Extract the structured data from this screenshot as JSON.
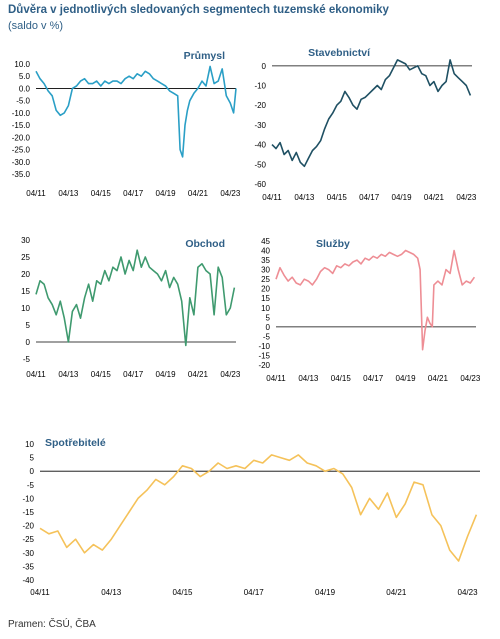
{
  "header": {
    "title": "Důvěra v jednotlivých sledovaných segmentech tuzemské ekonomiky",
    "subtitle": "(saldo v %)"
  },
  "footer": {
    "source": "Pramen: ČSÚ, ČBA"
  },
  "colors": {
    "prumysl": "#2a9fc6",
    "stavebnictvi": "#1f5063",
    "obchod": "#3f9a6f",
    "sluzby": "#ee8e95",
    "spotrebitele": "#f5c25a",
    "axis": "#000000",
    "title_text": "#2f5f86"
  },
  "chart_data": [
    {
      "id": "prumysl",
      "type": "line",
      "title": "Průmysl",
      "xlabel": "",
      "ylabel": "",
      "x_tick_labels": [
        "04/11",
        "04/13",
        "04/15",
        "04/17",
        "04/19",
        "04/21",
        "04/23"
      ],
      "x_tick_positions": [
        2011.25,
        2013.25,
        2015.25,
        2017.25,
        2019.25,
        2021.25,
        2023.25
      ],
      "xlim": [
        2011.25,
        2023.6
      ],
      "ylim": [
        -35,
        10
      ],
      "y_ticks": [
        10,
        5,
        0,
        -5,
        -10,
        -15,
        -20,
        -25,
        -30,
        -35
      ],
      "y_tick_labels": [
        "10.0",
        "5.0",
        "0.0",
        "-5.0",
        "-10.0",
        "-15.0",
        "-20.0",
        "-25.0",
        "-30.0",
        "-35.0"
      ],
      "zero_line": true,
      "grid": false,
      "series": [
        {
          "x": [
            2011.25,
            2011.5,
            2011.75,
            2012.0,
            2012.25,
            2012.5,
            2012.75,
            2013.0,
            2013.25,
            2013.5,
            2013.75,
            2014.0,
            2014.25,
            2014.5,
            2014.75,
            2015.0,
            2015.25,
            2015.5,
            2015.75,
            2016.0,
            2016.25,
            2016.5,
            2016.75,
            2017.0,
            2017.25,
            2017.5,
            2017.75,
            2018.0,
            2018.25,
            2018.5,
            2018.75,
            2019.0,
            2019.25,
            2019.5,
            2019.75,
            2020.0,
            2020.15,
            2020.3,
            2020.45,
            2020.6,
            2020.75,
            2021.0,
            2021.25,
            2021.5,
            2021.75,
            2022.0,
            2022.25,
            2022.5,
            2022.75,
            2023.0,
            2023.25,
            2023.45,
            2023.6
          ],
          "values": [
            7,
            4,
            2,
            -1,
            -3,
            -9,
            -11,
            -10,
            -7,
            0,
            1,
            3,
            4,
            2,
            2,
            3,
            1,
            3,
            2,
            3,
            3,
            2,
            4,
            5,
            4,
            6,
            5,
            7,
            6,
            4,
            3,
            2,
            1,
            -1,
            -2,
            -3,
            -25,
            -28,
            -15,
            -9,
            -5,
            -2,
            0,
            3,
            1,
            9,
            2,
            3,
            8,
            -3,
            -6,
            -10,
            0
          ]
        }
      ]
    },
    {
      "id": "stavebnictvi",
      "type": "line",
      "title": "Stavebnictví",
      "xlabel": "",
      "ylabel": "",
      "x_tick_labels": [
        "04/11",
        "04/13",
        "04/15",
        "04/17",
        "04/19",
        "04/21",
        "04/23"
      ],
      "x_tick_positions": [
        2011.25,
        2013.25,
        2015.25,
        2017.25,
        2019.25,
        2021.25,
        2023.25
      ],
      "xlim": [
        2011.25,
        2023.6
      ],
      "ylim": [
        -60,
        5
      ],
      "y_ticks": [
        0,
        -10,
        -20,
        -30,
        -40,
        -50,
        -60
      ],
      "y_tick_labels": [
        "0",
        "-10",
        "-20",
        "-30",
        "-40",
        "-50",
        "-60"
      ],
      "zero_line": true,
      "grid": false,
      "series": [
        {
          "x": [
            2011.25,
            2011.5,
            2011.75,
            2012.0,
            2012.25,
            2012.5,
            2012.75,
            2013.0,
            2013.25,
            2013.5,
            2013.75,
            2014.0,
            2014.25,
            2014.5,
            2014.75,
            2015.0,
            2015.25,
            2015.5,
            2015.75,
            2016.0,
            2016.25,
            2016.5,
            2016.75,
            2017.0,
            2017.25,
            2017.5,
            2017.75,
            2018.0,
            2018.25,
            2018.5,
            2018.75,
            2019.0,
            2019.25,
            2019.5,
            2019.75,
            2020.0,
            2020.25,
            2020.5,
            2020.75,
            2021.0,
            2021.25,
            2021.5,
            2021.75,
            2022.0,
            2022.25,
            2022.5,
            2022.75,
            2023.0,
            2023.25,
            2023.5
          ],
          "values": [
            -40,
            -42,
            -39,
            -45,
            -43,
            -48,
            -44,
            -49,
            -51,
            -47,
            -43,
            -41,
            -38,
            -32,
            -27,
            -24,
            -20,
            -18,
            -13,
            -16,
            -20,
            -22,
            -17,
            -16,
            -14,
            -12,
            -10,
            -12,
            -7,
            -5,
            -1,
            3,
            2,
            1,
            -2,
            -1,
            0,
            -4,
            -5,
            -10,
            -8,
            -13,
            -10,
            -8,
            3,
            -4,
            -6,
            -8,
            -10,
            -15
          ]
        }
      ]
    },
    {
      "id": "obchod",
      "type": "line",
      "title": "Obchod",
      "xlabel": "",
      "ylabel": "",
      "x_tick_labels": [
        "04/11",
        "04/13",
        "04/15",
        "04/17",
        "04/19",
        "04/21",
        "04/23"
      ],
      "x_tick_positions": [
        2011.25,
        2013.25,
        2015.25,
        2017.25,
        2019.25,
        2021.25,
        2023.25
      ],
      "xlim": [
        2011.25,
        2023.6
      ],
      "ylim": [
        -5,
        30
      ],
      "y_ticks": [
        30,
        25,
        20,
        15,
        10,
        5,
        0,
        -5
      ],
      "y_tick_labels": [
        "30",
        "25",
        "20",
        "15",
        "10",
        "5",
        "0",
        "-5"
      ],
      "zero_line": true,
      "grid": false,
      "series": [
        {
          "x": [
            2011.25,
            2011.5,
            2011.75,
            2012.0,
            2012.25,
            2012.5,
            2012.75,
            2013.0,
            2013.25,
            2013.5,
            2013.75,
            2014.0,
            2014.25,
            2014.5,
            2014.75,
            2015.0,
            2015.25,
            2015.5,
            2015.75,
            2016.0,
            2016.25,
            2016.5,
            2016.75,
            2017.0,
            2017.25,
            2017.5,
            2017.75,
            2018.0,
            2018.25,
            2018.5,
            2018.75,
            2019.0,
            2019.25,
            2019.5,
            2019.75,
            2020.0,
            2020.25,
            2020.5,
            2020.75,
            2021.0,
            2021.25,
            2021.5,
            2021.75,
            2022.0,
            2022.25,
            2022.5,
            2022.75,
            2023.0,
            2023.25,
            2023.5
          ],
          "values": [
            14,
            18,
            17,
            13,
            11,
            8,
            12,
            7,
            0,
            9,
            11,
            7,
            13,
            17,
            12,
            18,
            17,
            21,
            18,
            22,
            21,
            25,
            20,
            24,
            21,
            27,
            22,
            25,
            22,
            21,
            20,
            18,
            21,
            16,
            19,
            17,
            12,
            -1,
            13,
            8,
            22,
            23,
            21,
            20,
            8,
            22,
            19,
            8,
            10,
            16
          ]
        }
      ]
    },
    {
      "id": "sluzby",
      "type": "line",
      "title": "Služby",
      "xlabel": "",
      "ylabel": "",
      "x_tick_labels": [
        "04/11",
        "04/13",
        "04/15",
        "04/17",
        "04/19",
        "04/21",
        "04/23"
      ],
      "x_tick_positions": [
        2011.25,
        2013.25,
        2015.25,
        2017.25,
        2019.25,
        2021.25,
        2023.25
      ],
      "xlim": [
        2011.25,
        2023.6
      ],
      "ylim": [
        -20,
        45
      ],
      "y_ticks": [
        45,
        40,
        35,
        30,
        25,
        20,
        15,
        10,
        5,
        0,
        -5,
        -10,
        -15,
        -20
      ],
      "y_tick_labels": [
        "45",
        "40",
        "35",
        "30",
        "25",
        "20",
        "15",
        "10",
        "5",
        "0",
        "-5",
        "-10",
        "-15",
        "-20"
      ],
      "zero_line": true,
      "grid": false,
      "series": [
        {
          "x": [
            2011.25,
            2011.5,
            2011.75,
            2012.0,
            2012.25,
            2012.5,
            2012.75,
            2013.0,
            2013.25,
            2013.5,
            2013.75,
            2014.0,
            2014.25,
            2014.5,
            2014.75,
            2015.0,
            2015.25,
            2015.5,
            2015.75,
            2016.0,
            2016.25,
            2016.5,
            2016.75,
            2017.0,
            2017.25,
            2017.5,
            2017.75,
            2018.0,
            2018.25,
            2018.5,
            2018.75,
            2019.0,
            2019.25,
            2019.5,
            2019.75,
            2020.0,
            2020.15,
            2020.3,
            2020.45,
            2020.6,
            2020.75,
            2020.9,
            2021.0,
            2021.25,
            2021.5,
            2021.75,
            2022.0,
            2022.25,
            2022.5,
            2022.75,
            2023.0,
            2023.25,
            2023.5
          ],
          "values": [
            25,
            31,
            27,
            24,
            26,
            23,
            22,
            25,
            24,
            22,
            25,
            29,
            31,
            30,
            28,
            32,
            31,
            33,
            32,
            34,
            35,
            33,
            36,
            35,
            37,
            36,
            38,
            37,
            39,
            38,
            37,
            38,
            40,
            39,
            38,
            36,
            30,
            -12,
            -2,
            5,
            2,
            0,
            22,
            24,
            22,
            30,
            28,
            40,
            30,
            22,
            24,
            23,
            26
          ]
        }
      ]
    },
    {
      "id": "spotrebitele",
      "type": "line",
      "title": "Spotřebitelé",
      "xlabel": "",
      "ylabel": "",
      "x_tick_labels": [
        "04/11",
        "04/13",
        "04/15",
        "04/17",
        "04/19",
        "04/21",
        "04/23"
      ],
      "x_tick_positions": [
        2011.25,
        2013.25,
        2015.25,
        2017.25,
        2019.25,
        2021.25,
        2023.25
      ],
      "xlim": [
        2011.25,
        2023.6
      ],
      "ylim": [
        -40,
        10
      ],
      "y_ticks": [
        10,
        5,
        0,
        -5,
        -10,
        -15,
        -20,
        -25,
        -30,
        -35,
        -40
      ],
      "y_tick_labels": [
        "10",
        "5",
        "0",
        "-5",
        "-10",
        "-15",
        "-20",
        "-25",
        "-30",
        "-35",
        "-40"
      ],
      "zero_line": true,
      "grid": false,
      "series": [
        {
          "x": [
            2011.25,
            2011.5,
            2011.75,
            2012.0,
            2012.25,
            2012.5,
            2012.75,
            2013.0,
            2013.25,
            2013.5,
            2013.75,
            2014.0,
            2014.25,
            2014.5,
            2014.75,
            2015.0,
            2015.25,
            2015.5,
            2015.75,
            2016.0,
            2016.25,
            2016.5,
            2016.75,
            2017.0,
            2017.25,
            2017.5,
            2017.75,
            2018.0,
            2018.25,
            2018.5,
            2018.75,
            2019.0,
            2019.25,
            2019.5,
            2019.75,
            2020.0,
            2020.25,
            2020.5,
            2020.75,
            2021.0,
            2021.25,
            2021.5,
            2021.75,
            2022.0,
            2022.25,
            2022.5,
            2022.75,
            2023.0,
            2023.25,
            2023.5
          ],
          "values": [
            -21,
            -23,
            -22,
            -28,
            -25,
            -30,
            -27,
            -29,
            -25,
            -20,
            -15,
            -10,
            -7,
            -3,
            -5,
            -2,
            2,
            1,
            -2,
            0,
            3,
            1,
            2,
            1,
            4,
            3,
            6,
            5,
            4,
            6,
            3,
            2,
            0,
            1,
            -1,
            -6,
            -16,
            -10,
            -14,
            -8,
            -17,
            -12,
            -4,
            -5,
            -16,
            -20,
            -29,
            -33,
            -24,
            -16
          ]
        }
      ]
    }
  ]
}
